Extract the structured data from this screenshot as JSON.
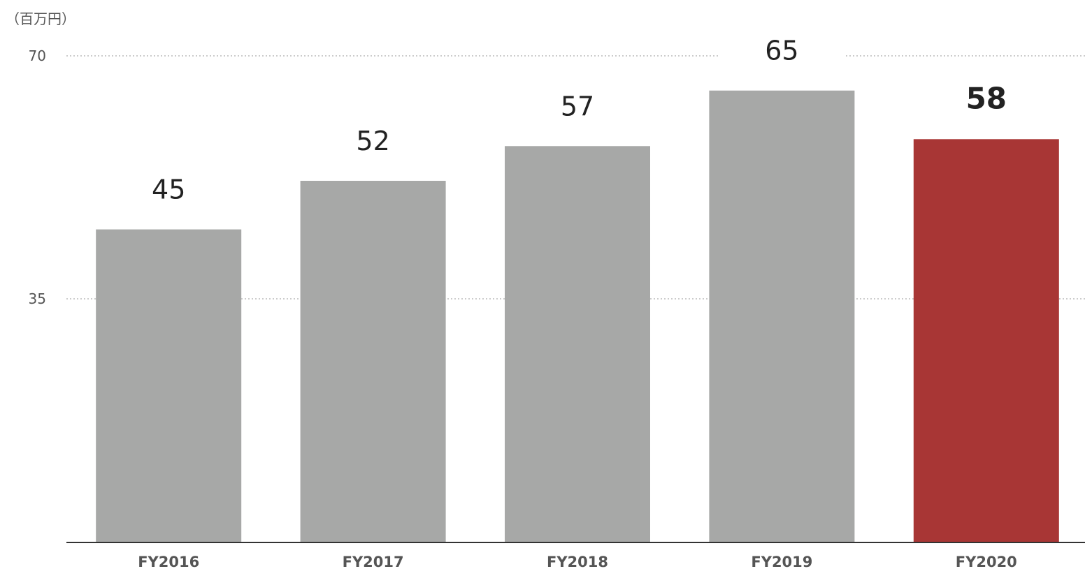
{
  "chart_data": {
    "type": "bar",
    "unit_label": "（百万円）",
    "categories": [
      "FY2016",
      "FY2017",
      "FY2018",
      "FY2019",
      "FY2020"
    ],
    "values": [
      45,
      52,
      57,
      65,
      58
    ],
    "data_labels": [
      "45",
      "52",
      "57",
      "65",
      "58"
    ],
    "yticks": [
      35,
      70
    ],
    "ytick_labels": [
      "35",
      "70"
    ],
    "ylim": [
      0,
      70
    ],
    "grid": true,
    "colors": {
      "bar": "#a7a8a7",
      "highlight_bar": "#a83635",
      "highlight_label": "#c0261f",
      "label": "#222222"
    },
    "highlight_index": 4
  }
}
